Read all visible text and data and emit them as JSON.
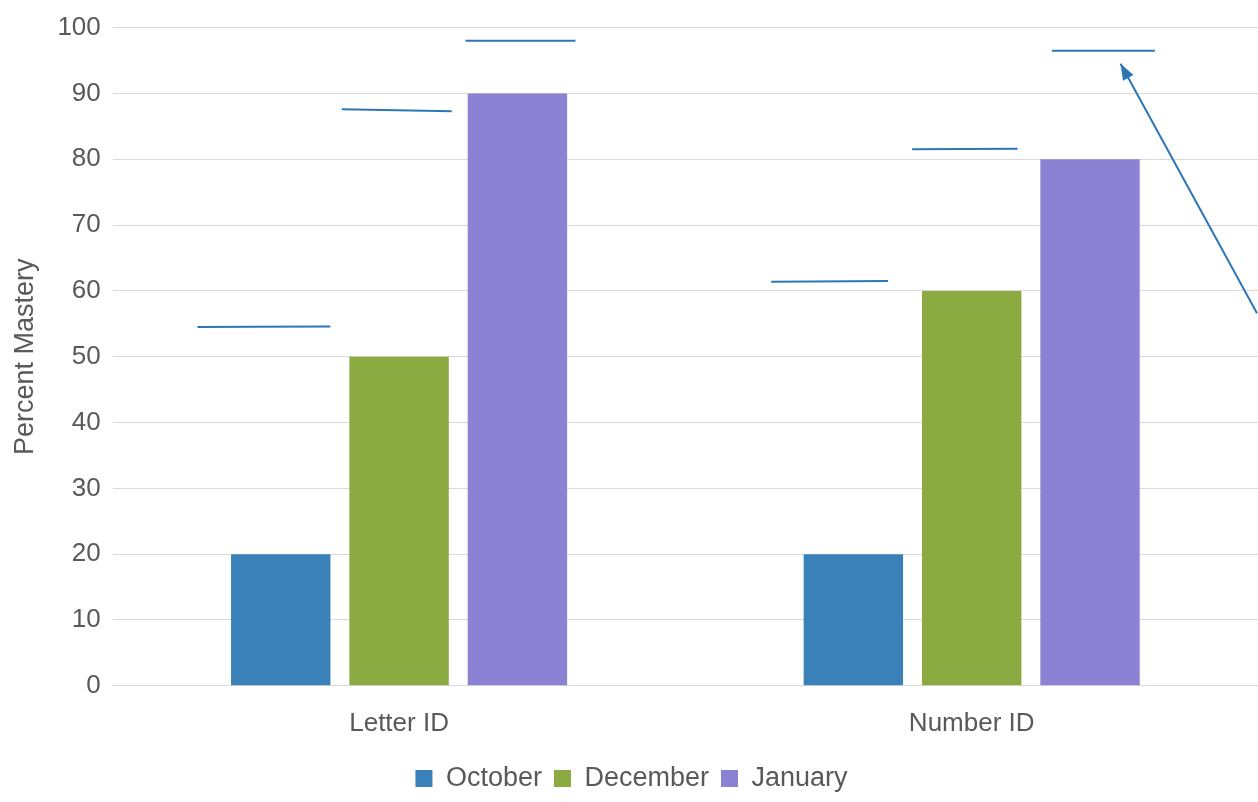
{
  "chart_data": {
    "type": "bar",
    "ylabel": "Percent Mastery",
    "categories": [
      "Letter ID",
      "Number ID"
    ],
    "series": [
      {
        "name": "October",
        "color": "#3a80b9",
        "values": [
          20,
          20
        ]
      },
      {
        "name": "December",
        "color": "#8caa42",
        "values": [
          50,
          60
        ]
      },
      {
        "name": "January",
        "color": "#8b82d4",
        "values": [
          90,
          80
        ]
      }
    ],
    "ylim": [
      0,
      100
    ],
    "yticks": [
      0,
      10,
      20,
      30,
      40,
      50,
      60,
      70,
      80,
      90,
      100
    ],
    "grid": "y",
    "legend": "bottom"
  }
}
